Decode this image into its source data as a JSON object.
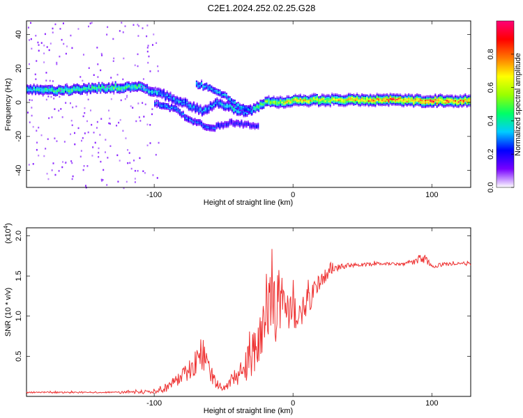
{
  "title": "C2E1.2024.252.02.25.G28",
  "chart_data": [
    {
      "type": "heatmap",
      "title": "",
      "xlabel": "Height of straight line (km)",
      "ylabel": "Frequency (Hz)",
      "xlim": [
        -192,
        128
      ],
      "ylim": [
        -50,
        48
      ],
      "x_ticks": [
        -100,
        0,
        100
      ],
      "x_tick_labels": [
        "-100",
        "0",
        "100"
      ],
      "y_ticks": [
        -40,
        -20,
        0,
        20,
        40
      ],
      "y_tick_labels": [
        "-40",
        "-20",
        "0",
        "20",
        "40"
      ],
      "grid": false,
      "colorbar": {
        "label": "Normalized spectral amplitude",
        "range": [
          0,
          1
        ],
        "ticks": [
          0.0,
          0.2,
          0.4,
          0.6,
          0.8
        ],
        "tick_labels": [
          "0.0",
          "0.2",
          "0.4",
          "0.6",
          "0.8"
        ],
        "colormap": [
          "#ffffff",
          "#7700ff",
          "#0000ff",
          "#00ccff",
          "#00ff66",
          "#99ff00",
          "#ffff00",
          "#ff7700",
          "#ff0000",
          "#ff0077"
        ]
      },
      "ridge": [
        {
          "x": -192,
          "y": 8,
          "amp": 0.35
        },
        {
          "x": -170,
          "y": 7,
          "amp": 0.45
        },
        {
          "x": -150,
          "y": 8,
          "amp": 0.4
        },
        {
          "x": -130,
          "y": 9,
          "amp": 0.45
        },
        {
          "x": -110,
          "y": 9,
          "amp": 0.4
        },
        {
          "x": -95,
          "y": 5,
          "amp": 0.3
        },
        {
          "x": -80,
          "y": 0,
          "amp": 0.3
        },
        {
          "x": -65,
          "y": -5,
          "amp": 0.3
        },
        {
          "x": -55,
          "y": 0,
          "amp": 0.3
        },
        {
          "x": -45,
          "y": -3,
          "amp": 0.35
        },
        {
          "x": -35,
          "y": -6,
          "amp": 0.3
        },
        {
          "x": -20,
          "y": 0,
          "amp": 0.5
        },
        {
          "x": 0,
          "y": 1,
          "amp": 0.65
        },
        {
          "x": 20,
          "y": 1.5,
          "amp": 0.6
        },
        {
          "x": 60,
          "y": 1.5,
          "amp": 0.75
        },
        {
          "x": 100,
          "y": 1,
          "amp": 0.8
        },
        {
          "x": 128,
          "y": 1,
          "amp": 0.75
        }
      ],
      "secondary_branch": [
        {
          "x": -100,
          "y": 0,
          "amp": 0.3
        },
        {
          "x": -85,
          "y": -4,
          "amp": 0.3
        },
        {
          "x": -75,
          "y": -10,
          "amp": 0.25
        },
        {
          "x": -60,
          "y": -15,
          "amp": 0.25
        },
        {
          "x": -45,
          "y": -12,
          "amp": 0.2
        },
        {
          "x": -25,
          "y": -14,
          "amp": 0.2
        }
      ],
      "upper_branch": [
        {
          "x": -70,
          "y": 11,
          "amp": 0.35
        },
        {
          "x": -55,
          "y": 7,
          "amp": 0.3
        },
        {
          "x": -40,
          "y": -2,
          "amp": 0.35
        },
        {
          "x": -30,
          "y": -5,
          "amp": 0.3
        }
      ]
    },
    {
      "type": "line",
      "title": "",
      "xlabel": "Height of straight line (km)",
      "ylabel": "SNR (10 * v/v)",
      "y_multiplier_label": "(x10",
      "y_multiplier_exponent": "4",
      "y_multiplier_close": ")",
      "xlim": [
        -192,
        128
      ],
      "ylim": [
        0,
        2.1
      ],
      "x_ticks": [
        -100,
        0,
        100
      ],
      "x_tick_labels": [
        "-100",
        "0",
        "100"
      ],
      "y_ticks": [
        0.5,
        1.0,
        1.5,
        2.0
      ],
      "y_tick_labels": [
        "0.5",
        "1.0",
        "1.5",
        "2.0"
      ],
      "grid": false,
      "line_color": "#ee3333",
      "series": [
        {
          "x": [
            -192,
            -170,
            -150,
            -130,
            -110,
            -100,
            -90,
            -80,
            -70,
            -65,
            -60,
            -55,
            -50,
            -45,
            -40,
            -35,
            -30,
            -25,
            -20,
            -15,
            -10,
            -5,
            0,
            5,
            10,
            15,
            20,
            30,
            40,
            60,
            80,
            95,
            100,
            110,
            128
          ],
          "y": [
            0.05,
            0.05,
            0.05,
            0.05,
            0.05,
            0.06,
            0.12,
            0.25,
            0.4,
            0.55,
            0.3,
            0.15,
            0.1,
            0.2,
            0.25,
            0.35,
            0.5,
            0.7,
            0.9,
            1.1,
            1.2,
            1.15,
            1.05,
            1.0,
            1.15,
            1.3,
            1.45,
            1.6,
            1.63,
            1.65,
            1.65,
            1.7,
            1.62,
            1.65,
            1.65
          ],
          "noise": [
            0.01,
            0.01,
            0.01,
            0.01,
            0.02,
            0.03,
            0.06,
            0.1,
            0.18,
            0.22,
            0.12,
            0.06,
            0.05,
            0.1,
            0.12,
            0.18,
            0.25,
            0.35,
            0.45,
            0.5,
            0.45,
            0.35,
            0.25,
            0.2,
            0.2,
            0.15,
            0.1,
            0.05,
            0.03,
            0.02,
            0.02,
            0.06,
            0.03,
            0.02,
            0.02
          ]
        }
      ]
    }
  ]
}
